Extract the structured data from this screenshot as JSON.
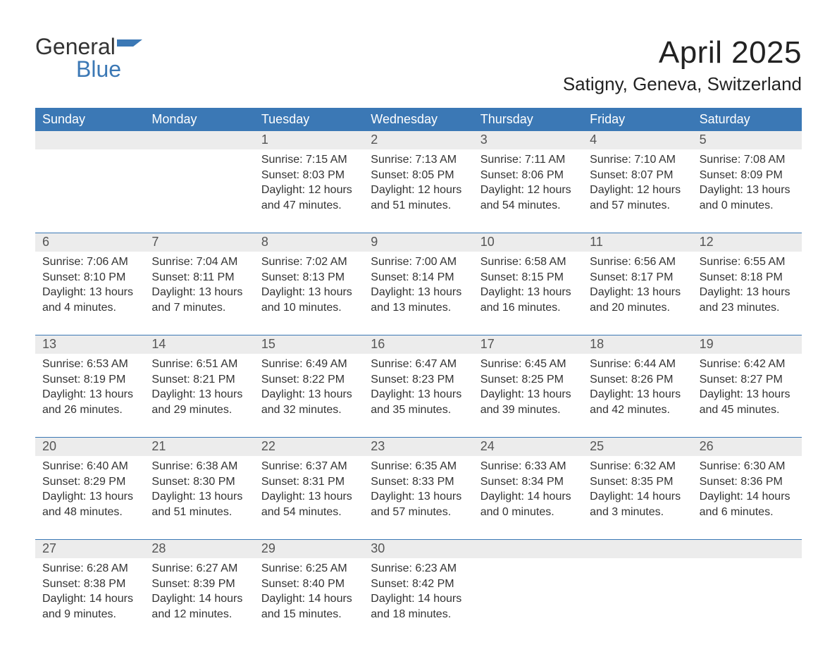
{
  "brand": {
    "name_part1": "General",
    "name_part2": "Blue",
    "text_color_dark": "#333333",
    "text_color_blue": "#3b78b5",
    "mark_color": "#3b78b5"
  },
  "header": {
    "month_title": "April 2025",
    "location": "Satigny, Geneva, Switzerland"
  },
  "styling": {
    "header_bg": "#3b78b5",
    "header_text": "#ffffff",
    "daynum_bg": "#ececec",
    "daynum_text": "#555555",
    "body_text": "#333333",
    "week_separator": "#3b78b5",
    "page_bg": "#ffffff",
    "font_family": "Segoe UI, Arial, Helvetica, sans-serif",
    "month_title_fontsize": 44,
    "location_fontsize": 26,
    "dow_fontsize": 18,
    "daynum_fontsize": 18,
    "daydata_fontsize": 16
  },
  "days_of_week": [
    "Sunday",
    "Monday",
    "Tuesday",
    "Wednesday",
    "Thursday",
    "Friday",
    "Saturday"
  ],
  "weeks": [
    [
      {
        "n": "",
        "sunrise": "",
        "sunset": "",
        "daylight": ""
      },
      {
        "n": "",
        "sunrise": "",
        "sunset": "",
        "daylight": ""
      },
      {
        "n": "1",
        "sunrise": "Sunrise: 7:15 AM",
        "sunset": "Sunset: 8:03 PM",
        "daylight": "Daylight: 12 hours and 47 minutes."
      },
      {
        "n": "2",
        "sunrise": "Sunrise: 7:13 AM",
        "sunset": "Sunset: 8:05 PM",
        "daylight": "Daylight: 12 hours and 51 minutes."
      },
      {
        "n": "3",
        "sunrise": "Sunrise: 7:11 AM",
        "sunset": "Sunset: 8:06 PM",
        "daylight": "Daylight: 12 hours and 54 minutes."
      },
      {
        "n": "4",
        "sunrise": "Sunrise: 7:10 AM",
        "sunset": "Sunset: 8:07 PM",
        "daylight": "Daylight: 12 hours and 57 minutes."
      },
      {
        "n": "5",
        "sunrise": "Sunrise: 7:08 AM",
        "sunset": "Sunset: 8:09 PM",
        "daylight": "Daylight: 13 hours and 0 minutes."
      }
    ],
    [
      {
        "n": "6",
        "sunrise": "Sunrise: 7:06 AM",
        "sunset": "Sunset: 8:10 PM",
        "daylight": "Daylight: 13 hours and 4 minutes."
      },
      {
        "n": "7",
        "sunrise": "Sunrise: 7:04 AM",
        "sunset": "Sunset: 8:11 PM",
        "daylight": "Daylight: 13 hours and 7 minutes."
      },
      {
        "n": "8",
        "sunrise": "Sunrise: 7:02 AM",
        "sunset": "Sunset: 8:13 PM",
        "daylight": "Daylight: 13 hours and 10 minutes."
      },
      {
        "n": "9",
        "sunrise": "Sunrise: 7:00 AM",
        "sunset": "Sunset: 8:14 PM",
        "daylight": "Daylight: 13 hours and 13 minutes."
      },
      {
        "n": "10",
        "sunrise": "Sunrise: 6:58 AM",
        "sunset": "Sunset: 8:15 PM",
        "daylight": "Daylight: 13 hours and 16 minutes."
      },
      {
        "n": "11",
        "sunrise": "Sunrise: 6:56 AM",
        "sunset": "Sunset: 8:17 PM",
        "daylight": "Daylight: 13 hours and 20 minutes."
      },
      {
        "n": "12",
        "sunrise": "Sunrise: 6:55 AM",
        "sunset": "Sunset: 8:18 PM",
        "daylight": "Daylight: 13 hours and 23 minutes."
      }
    ],
    [
      {
        "n": "13",
        "sunrise": "Sunrise: 6:53 AM",
        "sunset": "Sunset: 8:19 PM",
        "daylight": "Daylight: 13 hours and 26 minutes."
      },
      {
        "n": "14",
        "sunrise": "Sunrise: 6:51 AM",
        "sunset": "Sunset: 8:21 PM",
        "daylight": "Daylight: 13 hours and 29 minutes."
      },
      {
        "n": "15",
        "sunrise": "Sunrise: 6:49 AM",
        "sunset": "Sunset: 8:22 PM",
        "daylight": "Daylight: 13 hours and 32 minutes."
      },
      {
        "n": "16",
        "sunrise": "Sunrise: 6:47 AM",
        "sunset": "Sunset: 8:23 PM",
        "daylight": "Daylight: 13 hours and 35 minutes."
      },
      {
        "n": "17",
        "sunrise": "Sunrise: 6:45 AM",
        "sunset": "Sunset: 8:25 PM",
        "daylight": "Daylight: 13 hours and 39 minutes."
      },
      {
        "n": "18",
        "sunrise": "Sunrise: 6:44 AM",
        "sunset": "Sunset: 8:26 PM",
        "daylight": "Daylight: 13 hours and 42 minutes."
      },
      {
        "n": "19",
        "sunrise": "Sunrise: 6:42 AM",
        "sunset": "Sunset: 8:27 PM",
        "daylight": "Daylight: 13 hours and 45 minutes."
      }
    ],
    [
      {
        "n": "20",
        "sunrise": "Sunrise: 6:40 AM",
        "sunset": "Sunset: 8:29 PM",
        "daylight": "Daylight: 13 hours and 48 minutes."
      },
      {
        "n": "21",
        "sunrise": "Sunrise: 6:38 AM",
        "sunset": "Sunset: 8:30 PM",
        "daylight": "Daylight: 13 hours and 51 minutes."
      },
      {
        "n": "22",
        "sunrise": "Sunrise: 6:37 AM",
        "sunset": "Sunset: 8:31 PM",
        "daylight": "Daylight: 13 hours and 54 minutes."
      },
      {
        "n": "23",
        "sunrise": "Sunrise: 6:35 AM",
        "sunset": "Sunset: 8:33 PM",
        "daylight": "Daylight: 13 hours and 57 minutes."
      },
      {
        "n": "24",
        "sunrise": "Sunrise: 6:33 AM",
        "sunset": "Sunset: 8:34 PM",
        "daylight": "Daylight: 14 hours and 0 minutes."
      },
      {
        "n": "25",
        "sunrise": "Sunrise: 6:32 AM",
        "sunset": "Sunset: 8:35 PM",
        "daylight": "Daylight: 14 hours and 3 minutes."
      },
      {
        "n": "26",
        "sunrise": "Sunrise: 6:30 AM",
        "sunset": "Sunset: 8:36 PM",
        "daylight": "Daylight: 14 hours and 6 minutes."
      }
    ],
    [
      {
        "n": "27",
        "sunrise": "Sunrise: 6:28 AM",
        "sunset": "Sunset: 8:38 PM",
        "daylight": "Daylight: 14 hours and 9 minutes."
      },
      {
        "n": "28",
        "sunrise": "Sunrise: 6:27 AM",
        "sunset": "Sunset: 8:39 PM",
        "daylight": "Daylight: 14 hours and 12 minutes."
      },
      {
        "n": "29",
        "sunrise": "Sunrise: 6:25 AM",
        "sunset": "Sunset: 8:40 PM",
        "daylight": "Daylight: 14 hours and 15 minutes."
      },
      {
        "n": "30",
        "sunrise": "Sunrise: 6:23 AM",
        "sunset": "Sunset: 8:42 PM",
        "daylight": "Daylight: 14 hours and 18 minutes."
      },
      {
        "n": "",
        "sunrise": "",
        "sunset": "",
        "daylight": ""
      },
      {
        "n": "",
        "sunrise": "",
        "sunset": "",
        "daylight": ""
      },
      {
        "n": "",
        "sunrise": "",
        "sunset": "",
        "daylight": ""
      }
    ]
  ]
}
